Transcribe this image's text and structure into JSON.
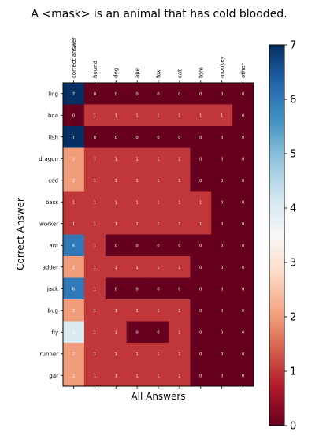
{
  "chart_data": {
    "type": "heatmap",
    "title": "A <mask> is an animal that has cold blooded.",
    "xlabel": "All Answers",
    "ylabel": "Correct Answer",
    "columns": [
      "correct answer",
      "hound",
      "dog",
      "ape",
      "fox",
      "cat",
      "tom",
      "monkey",
      "other"
    ],
    "rows": [
      "ling",
      "boa",
      "fish",
      "dragon",
      "cod",
      "bass",
      "worker",
      "ant",
      "adder",
      "jack",
      "bug",
      "fly",
      "runner",
      "gar"
    ],
    "values": [
      [
        7,
        0,
        0,
        0,
        0,
        0,
        0,
        0,
        0
      ],
      [
        0,
        1,
        1,
        1,
        1,
        1,
        1,
        1,
        0
      ],
      [
        7,
        0,
        0,
        0,
        0,
        0,
        0,
        0,
        0
      ],
      [
        2,
        1,
        1,
        1,
        1,
        1,
        0,
        0,
        0
      ],
      [
        2,
        1,
        1,
        1,
        1,
        1,
        0,
        0,
        0
      ],
      [
        1,
        1,
        1,
        1,
        1,
        1,
        1,
        0,
        0
      ],
      [
        1,
        1,
        1,
        1,
        1,
        1,
        1,
        0,
        0
      ],
      [
        6,
        1,
        0,
        0,
        0,
        0,
        0,
        0,
        0
      ],
      [
        2,
        1,
        1,
        1,
        1,
        1,
        0,
        0,
        0
      ],
      [
        6,
        1,
        0,
        0,
        0,
        0,
        0,
        0,
        0
      ],
      [
        2,
        1,
        1,
        1,
        1,
        1,
        0,
        0,
        0
      ],
      [
        4,
        1,
        1,
        0,
        0,
        1,
        0,
        0,
        0
      ],
      [
        2,
        1,
        1,
        1,
        1,
        1,
        0,
        0,
        0
      ],
      [
        2,
        1,
        1,
        1,
        1,
        1,
        0,
        0,
        0
      ]
    ],
    "vmin": 0,
    "vmax": 7,
    "colormap": "RdBu",
    "colorbar_ticks": [
      0,
      1,
      2,
      3,
      4,
      5,
      6,
      7
    ]
  }
}
